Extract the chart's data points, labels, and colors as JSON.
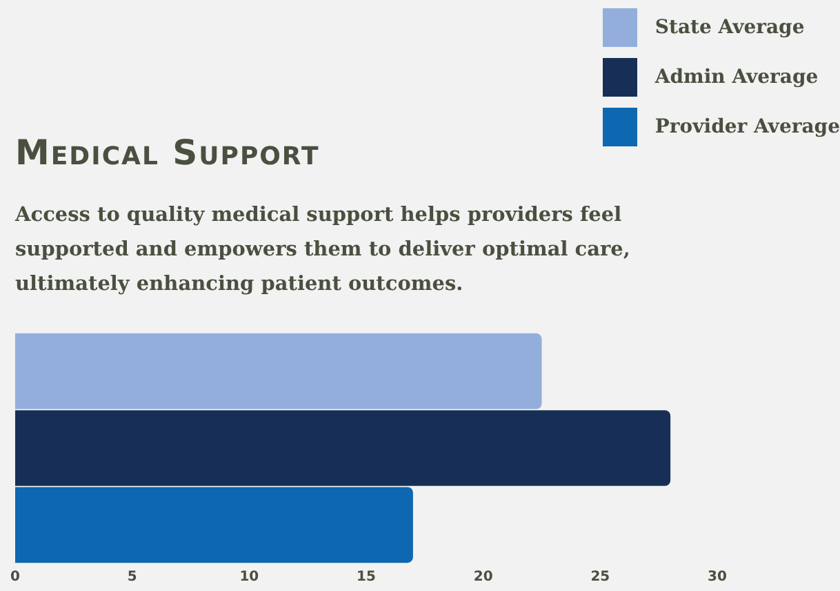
{
  "chart_data": {
    "type": "bar",
    "orientation": "horizontal",
    "title": "Medical Support",
    "subtitle": "Access to quality medical support helps providers feel supported and empowers them to deliver optimal care, ultimately enhancing patient outcomes.",
    "categories": [
      null
    ],
    "series": [
      {
        "name": "State Average",
        "color": "#94aedc",
        "values": [
          22.5
        ]
      },
      {
        "name": "Admin Average",
        "color": "#172f56",
        "values": [
          28
        ]
      },
      {
        "name": "Provider Average",
        "color": "#0e67b1",
        "values": [
          17
        ]
      }
    ],
    "xlim": [
      0,
      30
    ],
    "xticks": [
      0,
      5,
      10,
      15,
      20,
      25,
      30
    ],
    "grid": false,
    "legend": "top right"
  }
}
